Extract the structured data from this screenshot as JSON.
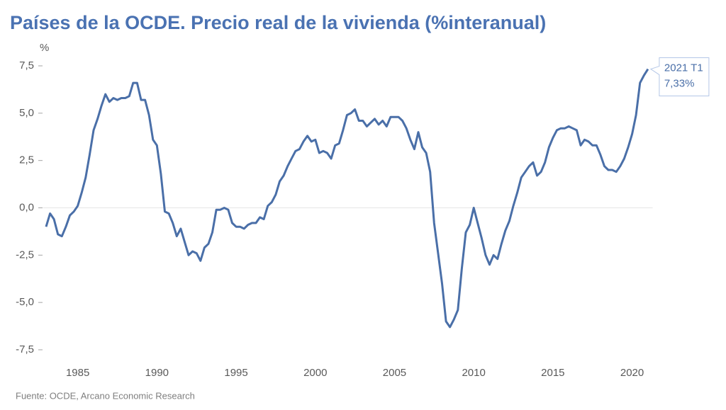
{
  "chart_data": {
    "type": "line",
    "title": "Países de la OCDE. Precio real de la vivienda (%interanual)",
    "y_label": "%",
    "source": "Fuente: OCDE, Arcano Economic Research",
    "annotation": {
      "lines": [
        "2021 T1",
        "7,33%"
      ]
    },
    "xlim": [
      1982.8,
      2021.3
    ],
    "xticks": [
      1985,
      1990,
      1995,
      2000,
      2005,
      2010,
      2015,
      2020
    ],
    "ylim": [
      -8.1,
      8.2
    ],
    "yticks": [
      {
        "value": -7.5,
        "label": "-7,5"
      },
      {
        "value": -5,
        "label": "-5,0"
      },
      {
        "value": -2.5,
        "label": "-2,5"
      },
      {
        "value": 0,
        "label": "0,0"
      },
      {
        "value": 2.5,
        "label": "2,5"
      },
      {
        "value": 5,
        "label": "5,0"
      },
      {
        "value": 7.5,
        "label": "7,5"
      }
    ],
    "grid": false,
    "x": [
      1983,
      1983.25,
      1983.5,
      1983.75,
      1984,
      1984.25,
      1984.5,
      1984.75,
      1985,
      1985.25,
      1985.5,
      1985.75,
      1986,
      1986.25,
      1986.5,
      1986.75,
      1987,
      1987.25,
      1987.5,
      1987.75,
      1988,
      1988.25,
      1988.5,
      1988.75,
      1989,
      1989.25,
      1989.5,
      1989.75,
      1990,
      1990.25,
      1990.5,
      1990.75,
      1991,
      1991.25,
      1991.5,
      1991.75,
      1992,
      1992.25,
      1992.5,
      1992.75,
      1993,
      1993.25,
      1993.5,
      1993.75,
      1994,
      1994.25,
      1994.5,
      1994.75,
      1995,
      1995.25,
      1995.5,
      1995.75,
      1996,
      1996.25,
      1996.5,
      1996.75,
      1997,
      1997.25,
      1997.5,
      1997.75,
      1998,
      1998.25,
      1998.5,
      1998.75,
      1999,
      1999.25,
      1999.5,
      1999.75,
      2000,
      2000.25,
      2000.5,
      2000.75,
      2001,
      2001.25,
      2001.5,
      2001.75,
      2002,
      2002.25,
      2002.5,
      2002.75,
      2003,
      2003.25,
      2003.5,
      2003.75,
      2004,
      2004.25,
      2004.5,
      2004.75,
      2005,
      2005.25,
      2005.5,
      2005.75,
      2006,
      2006.25,
      2006.5,
      2006.75,
      2007,
      2007.25,
      2007.5,
      2007.75,
      2008,
      2008.25,
      2008.5,
      2008.75,
      2009,
      2009.25,
      2009.5,
      2009.75,
      2010,
      2010.25,
      2010.5,
      2010.75,
      2011,
      2011.25,
      2011.5,
      2011.75,
      2012,
      2012.25,
      2012.5,
      2012.75,
      2013,
      2013.25,
      2013.5,
      2013.75,
      2014,
      2014.25,
      2014.5,
      2014.75,
      2015,
      2015.25,
      2015.5,
      2015.75,
      2016,
      2016.25,
      2016.5,
      2016.75,
      2017,
      2017.25,
      2017.5,
      2017.75,
      2018,
      2018.25,
      2018.5,
      2018.75,
      2019,
      2019.25,
      2019.5,
      2019.75,
      2020,
      2020.25,
      2020.5,
      2020.75,
      2021
    ],
    "series": [
      {
        "name": "Precio real de la vivienda",
        "color": "#4a6fa8",
        "values": [
          -1.0,
          -0.3,
          -0.6,
          -1.4,
          -1.5,
          -1.0,
          -0.4,
          -0.2,
          0.1,
          0.8,
          1.6,
          2.8,
          4.1,
          4.7,
          5.4,
          6.0,
          5.6,
          5.8,
          5.7,
          5.8,
          5.8,
          5.9,
          6.6,
          6.6,
          5.7,
          5.7,
          4.9,
          3.6,
          3.3,
          1.8,
          -0.2,
          -0.3,
          -0.8,
          -1.5,
          -1.1,
          -1.8,
          -2.5,
          -2.3,
          -2.4,
          -2.8,
          -2.1,
          -1.9,
          -1.3,
          -0.1,
          -0.1,
          0.0,
          -0.1,
          -0.8,
          -1.0,
          -1.0,
          -1.1,
          -0.9,
          -0.8,
          -0.8,
          -0.5,
          -0.6,
          0.1,
          0.3,
          0.7,
          1.4,
          1.7,
          2.2,
          2.6,
          3.0,
          3.1,
          3.5,
          3.8,
          3.5,
          3.6,
          2.9,
          3.0,
          2.9,
          2.6,
          3.3,
          3.4,
          4.1,
          4.9,
          5.0,
          5.2,
          4.6,
          4.6,
          4.3,
          4.5,
          4.7,
          4.4,
          4.6,
          4.3,
          4.8,
          4.8,
          4.8,
          4.6,
          4.2,
          3.6,
          3.1,
          4.0,
          3.2,
          2.9,
          1.9,
          -0.8,
          -2.4,
          -4.0,
          -6.0,
          -6.3,
          -5.9,
          -5.4,
          -3.2,
          -1.3,
          -0.9,
          0.0,
          -0.8,
          -1.6,
          -2.5,
          -3.0,
          -2.5,
          -2.7,
          -1.9,
          -1.2,
          -0.7,
          0.1,
          0.8,
          1.6,
          1.9,
          2.2,
          2.4,
          1.7,
          1.9,
          2.4,
          3.2,
          3.7,
          4.1,
          4.2,
          4.2,
          4.3,
          4.2,
          4.1,
          3.3,
          3.6,
          3.5,
          3.3,
          3.3,
          2.8,
          2.2,
          2.0,
          2.0,
          1.9,
          2.2,
          2.6,
          3.2,
          3.9,
          4.9,
          6.6,
          7.0,
          7.33
        ]
      }
    ]
  }
}
